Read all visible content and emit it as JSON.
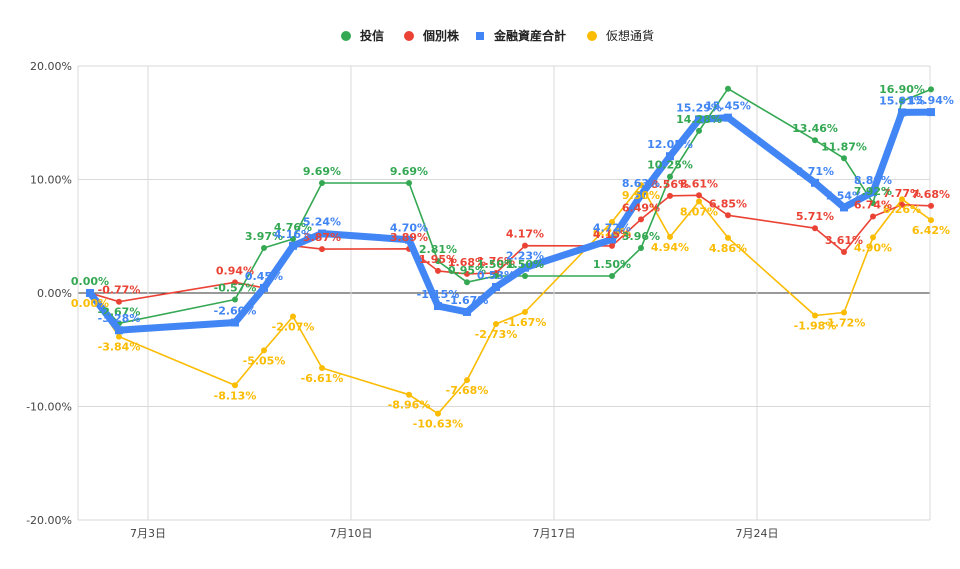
{
  "chart_data": {
    "type": "line",
    "title": "",
    "xlabel": "",
    "ylabel": "",
    "x_tick_labels": [
      "7月3日",
      "7月10日",
      "7月17日",
      "7月24日"
    ],
    "y_tick_labels": [
      "20.00%",
      "10.00%",
      "0.00%",
      "-10.00%",
      "-20.00%"
    ],
    "ylim": [
      -20,
      20
    ],
    "grid": true,
    "legend": "top",
    "series": [
      {
        "name": "投信",
        "color": "#34a853",
        "points": [
          {
            "x": 0,
            "y": 0.0,
            "label": "0.00%"
          },
          {
            "x": 1,
            "y": -2.67,
            "label": "-2.67%"
          },
          {
            "x": 5,
            "y": -0.57,
            "label": "-0.57%"
          },
          {
            "x": 6,
            "y": 3.97,
            "label": "3.97%"
          },
          {
            "x": 7,
            "y": 4.76,
            "label": "4.76%"
          },
          {
            "x": 8,
            "y": 9.69,
            "label": "9.69%"
          },
          {
            "x": 11,
            "y": 9.69,
            "label": "9.69%"
          },
          {
            "x": 12,
            "y": 2.81,
            "label": "2.81%"
          },
          {
            "x": 13,
            "y": 0.95,
            "label": "0.95%"
          },
          {
            "x": 14,
            "y": 1.5,
            "label": "1.50%"
          },
          {
            "x": 15,
            "y": 1.5,
            "label": "1.50%"
          },
          {
            "x": 18,
            "y": 1.5,
            "label": "1.50%"
          },
          {
            "x": 19,
            "y": 3.96,
            "label": "3.96%"
          },
          {
            "x": 20,
            "y": 10.25,
            "label": "10.25%"
          },
          {
            "x": 21,
            "y": 14.28,
            "label": "14.28%"
          },
          {
            "x": 22,
            "y": 18.0,
            "label": ""
          },
          {
            "x": 25,
            "y": 13.46,
            "label": "13.46%"
          },
          {
            "x": 26,
            "y": 11.87,
            "label": "11.87%"
          },
          {
            "x": 27,
            "y": 7.92,
            "label": "7.92%"
          },
          {
            "x": 28,
            "y": 16.9,
            "label": "16.90%"
          },
          {
            "x": 29,
            "y": 17.94,
            "label": ""
          }
        ]
      },
      {
        "name": "個別株",
        "color": "#ea4335",
        "points": [
          {
            "x": 0,
            "y": 0.0,
            "label": ""
          },
          {
            "x": 1,
            "y": -0.77,
            "label": "-0.77%"
          },
          {
            "x": 5,
            "y": 0.94,
            "label": "0.94%"
          },
          {
            "x": 6,
            "y": 0.45,
            "label": ""
          },
          {
            "x": 7,
            "y": 4.16,
            "label": ""
          },
          {
            "x": 8,
            "y": 3.87,
            "label": "3.87%"
          },
          {
            "x": 11,
            "y": 3.89,
            "label": "3.89%"
          },
          {
            "x": 12,
            "y": 1.95,
            "label": "1.95%"
          },
          {
            "x": 13,
            "y": 1.68,
            "label": "1.68%"
          },
          {
            "x": 14,
            "y": 1.76,
            "label": "1.76%"
          },
          {
            "x": 15,
            "y": 4.17,
            "label": "4.17%"
          },
          {
            "x": 18,
            "y": 4.15,
            "label": "4.15%"
          },
          {
            "x": 19,
            "y": 6.49,
            "label": "6.49%"
          },
          {
            "x": 20,
            "y": 8.56,
            "label": "8.56%"
          },
          {
            "x": 21,
            "y": 8.61,
            "label": "8.61%"
          },
          {
            "x": 22,
            "y": 6.85,
            "label": "6.85%"
          },
          {
            "x": 25,
            "y": 5.71,
            "label": "5.71%"
          },
          {
            "x": 26,
            "y": 3.61,
            "label": "3.61%"
          },
          {
            "x": 27,
            "y": 6.74,
            "label": "6.74%"
          },
          {
            "x": 28,
            "y": 7.77,
            "label": "7.77%"
          },
          {
            "x": 29,
            "y": 7.68,
            "label": "7.68%"
          }
        ]
      },
      {
        "name": "金融資産合計",
        "color": "#4285f4",
        "points": [
          {
            "x": 0,
            "y": 0.0,
            "label": ""
          },
          {
            "x": 1,
            "y": -3.28,
            "label": "-3.28%"
          },
          {
            "x": 5,
            "y": -2.6,
            "label": "-2.60%"
          },
          {
            "x": 6,
            "y": 0.45,
            "label": "0.45%"
          },
          {
            "x": 7,
            "y": 4.16,
            "label": "4.16%"
          },
          {
            "x": 8,
            "y": 5.24,
            "label": "5.24%"
          },
          {
            "x": 11,
            "y": 4.7,
            "label": "4.70%"
          },
          {
            "x": 12,
            "y": -1.15,
            "label": "-1.15%"
          },
          {
            "x": 13,
            "y": -1.67,
            "label": "-1.67%"
          },
          {
            "x": 14,
            "y": 0.53,
            "label": "0.53%"
          },
          {
            "x": 15,
            "y": 2.23,
            "label": "2.23%"
          },
          {
            "x": 18,
            "y": 4.72,
            "label": "4.72%"
          },
          {
            "x": 19,
            "y": 8.63,
            "label": "8.63%"
          },
          {
            "x": 20,
            "y": 12.05,
            "label": "12.05%"
          },
          {
            "x": 21,
            "y": 15.29,
            "label": "15.29%"
          },
          {
            "x": 22,
            "y": 15.45,
            "label": "15.45%"
          },
          {
            "x": 25,
            "y": 9.71,
            "label": "9.71%"
          },
          {
            "x": 26,
            "y": 7.54,
            "label": "7.54%"
          },
          {
            "x": 27,
            "y": 8.89,
            "label": "8.89%"
          },
          {
            "x": 28,
            "y": 15.91,
            "label": "15.91%"
          },
          {
            "x": 29,
            "y": 15.94,
            "label": "15.94%"
          }
        ]
      },
      {
        "name": "仮想通貨",
        "color": "#fbbc04",
        "points": [
          {
            "x": 0,
            "y": 0.0,
            "label": "0.00%"
          },
          {
            "x": 1,
            "y": -3.84,
            "label": "-3.84%"
          },
          {
            "x": 5,
            "y": -8.13,
            "label": "-8.13%"
          },
          {
            "x": 6,
            "y": -5.05,
            "label": "-5.05%"
          },
          {
            "x": 7,
            "y": -2.07,
            "label": "-2.07%"
          },
          {
            "x": 8,
            "y": -6.61,
            "label": "-6.61%"
          },
          {
            "x": 11,
            "y": -8.96,
            "label": "-8.96%"
          },
          {
            "x": 12,
            "y": -10.63,
            "label": "-10.63%"
          },
          {
            "x": 13,
            "y": -7.68,
            "label": "-7.68%"
          },
          {
            "x": 14,
            "y": -2.73,
            "label": "-2.73%"
          },
          {
            "x": 15,
            "y": -1.67,
            "label": "-1.67%"
          },
          {
            "x": 18,
            "y": 6.26,
            "label": "6.26%"
          },
          {
            "x": 19,
            "y": 9.5,
            "label": "9.50%"
          },
          {
            "x": 20,
            "y": 4.94,
            "label": "4.94%"
          },
          {
            "x": 21,
            "y": 8.07,
            "label": "8.07%"
          },
          {
            "x": 22,
            "y": 4.86,
            "label": "4.86%"
          },
          {
            "x": 25,
            "y": -1.98,
            "label": "-1.98%"
          },
          {
            "x": 26,
            "y": -1.72,
            "label": "-1.72%"
          },
          {
            "x": 27,
            "y": 4.9,
            "label": "4.90%"
          },
          {
            "x": 28,
            "y": 8.26,
            "label": "8.26%"
          },
          {
            "x": 29,
            "y": 6.42,
            "label": "6.42%"
          }
        ]
      }
    ]
  }
}
